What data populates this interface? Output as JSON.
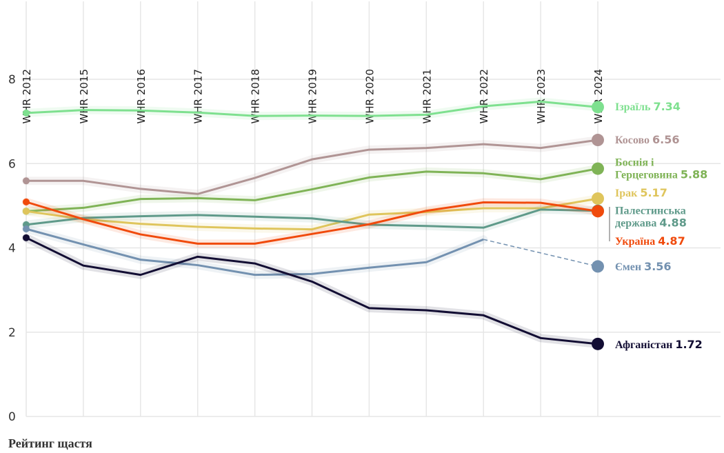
{
  "chart_data": {
    "type": "line",
    "categories": [
      "WHR 2012",
      "WHR 2015",
      "WHR 2016",
      "WHR 2017",
      "WHR 2018",
      "WHR 2019",
      "WHR 2020",
      "WHR 2021",
      "WHR 2022",
      "WHR 2023",
      "WHR 2024"
    ],
    "ylim": [
      0,
      8
    ],
    "yticks": [
      0,
      2,
      4,
      6,
      8
    ],
    "grid": true,
    "series": [
      {
        "name": "Ізраїль",
        "color": "#7ee08f",
        "values": [
          7.2,
          7.27,
          7.26,
          7.21,
          7.13,
          7.14,
          7.13,
          7.16,
          7.36,
          7.47,
          7.34
        ]
      },
      {
        "name": "Косово",
        "color": "#b09494",
        "values": [
          5.59,
          5.59,
          5.4,
          5.28,
          5.66,
          6.1,
          6.33,
          6.37,
          6.46,
          6.37,
          6.56
        ]
      },
      {
        "name": "Боснія і Герцеговина",
        "color": "#7fb356",
        "values": [
          4.87,
          4.95,
          5.16,
          5.18,
          5.13,
          5.39,
          5.67,
          5.81,
          5.77,
          5.63,
          5.88
        ]
      },
      {
        "name": "Ірак",
        "color": "#dfc55c",
        "values": [
          4.87,
          4.68,
          4.57,
          4.5,
          4.46,
          4.44,
          4.79,
          4.85,
          4.94,
          4.94,
          5.17
        ]
      },
      {
        "name": "Палестинська держава",
        "color": "#5f9a8a",
        "values": [
          4.55,
          4.71,
          4.75,
          4.78,
          4.74,
          4.7,
          4.55,
          4.52,
          4.48,
          4.91,
          4.88
        ]
      },
      {
        "name": "Україна",
        "color": "#f04a0c",
        "values": [
          5.09,
          4.68,
          4.32,
          4.1,
          4.1,
          4.33,
          4.56,
          4.88,
          5.08,
          5.07,
          4.87
        ]
      },
      {
        "name": "Ємен",
        "color": "#7391b0",
        "values": [
          4.45,
          4.08,
          3.72,
          3.59,
          3.36,
          3.38,
          3.53,
          3.66,
          4.2,
          null,
          3.56
        ]
      },
      {
        "name": "Афганістан",
        "color": "#120d33",
        "values": [
          4.24,
          3.58,
          3.36,
          3.79,
          3.63,
          3.2,
          2.57,
          2.52,
          2.4,
          1.86,
          1.72
        ]
      }
    ]
  },
  "footer": "Рейтинг щастя"
}
